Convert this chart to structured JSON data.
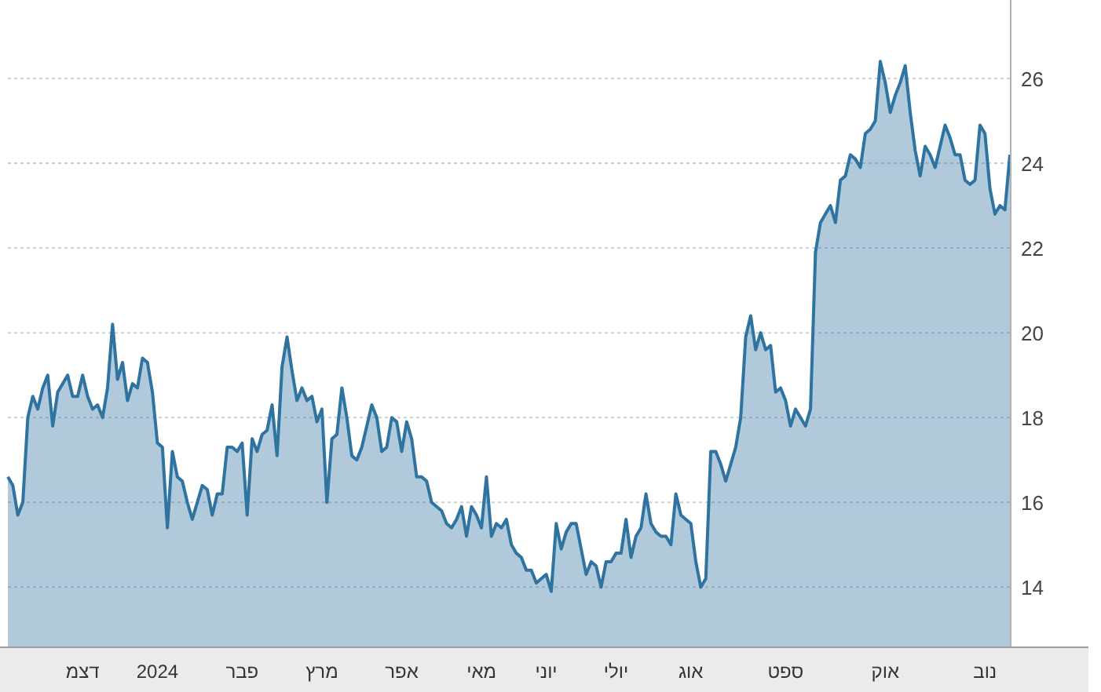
{
  "chart_data": {
    "type": "area",
    "color": "#2f73a0",
    "grid": "y",
    "ylim": [
      12.6,
      27.85
    ],
    "yticks": [
      14,
      16,
      18,
      20,
      22,
      24,
      26
    ],
    "categories": [
      null,
      null,
      null,
      null,
      null,
      null,
      null,
      null,
      null,
      null,
      null,
      null,
      null,
      null,
      null,
      "דצמ",
      null,
      null,
      null,
      null,
      null,
      null,
      null,
      null,
      null,
      null,
      null,
      null,
      null,
      null,
      "2024",
      null,
      null,
      null,
      null,
      null,
      null,
      null,
      null,
      null,
      null,
      null,
      null,
      null,
      null,
      null,
      null,
      "פבר",
      null,
      null,
      null,
      null,
      null,
      null,
      null,
      null,
      null,
      null,
      null,
      null,
      null,
      null,
      null,
      "מרץ",
      null,
      null,
      null,
      null,
      null,
      null,
      null,
      null,
      null,
      null,
      null,
      null,
      null,
      null,
      null,
      "אפר",
      null,
      null,
      null,
      null,
      null,
      null,
      null,
      null,
      null,
      null,
      null,
      null,
      null,
      null,
      null,
      "מאי",
      null,
      null,
      null,
      null,
      null,
      null,
      null,
      null,
      null,
      null,
      null,
      null,
      "יוני",
      null,
      null,
      null,
      null,
      null,
      null,
      null,
      null,
      null,
      null,
      null,
      null,
      null,
      "יולי",
      null,
      null,
      null,
      null,
      null,
      null,
      null,
      null,
      null,
      null,
      null,
      null,
      null,
      null,
      "אוג",
      null,
      null,
      null,
      null,
      null,
      null,
      null,
      null,
      null,
      null,
      null,
      null,
      null,
      null,
      null,
      null,
      null,
      null,
      "ספט",
      null,
      null,
      null,
      null,
      null,
      null,
      null,
      null,
      null,
      null,
      null,
      null,
      null,
      null,
      null,
      null,
      null,
      null,
      null,
      "אוק",
      null,
      null,
      null,
      null,
      null,
      null,
      null,
      null,
      null,
      null,
      null,
      null,
      null,
      null,
      null,
      null,
      null,
      null,
      null,
      "נוב",
      null,
      null,
      null,
      null,
      null
    ],
    "values": [
      16.6,
      16.4,
      15.7,
      16.0,
      18.0,
      18.5,
      18.2,
      18.7,
      19.0,
      17.8,
      18.6,
      18.8,
      19.0,
      18.5,
      18.5,
      19.0,
      18.5,
      18.2,
      18.3,
      18.0,
      18.7,
      20.2,
      18.9,
      19.3,
      18.4,
      18.8,
      18.7,
      19.4,
      19.3,
      18.6,
      17.4,
      17.3,
      15.4,
      17.2,
      16.6,
      16.5,
      16.0,
      15.6,
      16.0,
      16.4,
      16.3,
      15.7,
      16.2,
      16.2,
      17.3,
      17.3,
      17.2,
      17.4,
      15.7,
      17.5,
      17.2,
      17.6,
      17.7,
      18.3,
      17.1,
      19.2,
      19.9,
      19.1,
      18.4,
      18.7,
      18.4,
      18.5,
      17.9,
      18.2,
      16.0,
      17.5,
      17.6,
      18.7,
      18.0,
      17.1,
      17.0,
      17.3,
      17.8,
      18.3,
      18.0,
      17.2,
      17.3,
      18.0,
      17.9,
      17.2,
      17.9,
      17.5,
      16.6,
      16.6,
      16.5,
      16.0,
      15.9,
      15.8,
      15.5,
      15.4,
      15.6,
      15.9,
      15.2,
      15.9,
      15.7,
      15.4,
      16.6,
      15.2,
      15.5,
      15.4,
      15.6,
      15.0,
      14.8,
      14.7,
      14.4,
      14.4,
      14.1,
      14.2,
      14.3,
      13.9,
      15.5,
      14.9,
      15.3,
      15.5,
      15.5,
      14.9,
      14.3,
      14.6,
      14.5,
      14.0,
      14.6,
      14.6,
      14.8,
      14.8,
      15.6,
      14.7,
      15.2,
      15.4,
      16.2,
      15.5,
      15.3,
      15.2,
      15.2,
      15.0,
      16.2,
      15.7,
      15.6,
      15.5,
      14.6,
      14.0,
      14.2,
      17.2,
      17.2,
      16.9,
      16.5,
      16.9,
      17.3,
      18.0,
      19.9,
      20.4,
      19.6,
      20.0,
      19.6,
      19.7,
      18.6,
      18.7,
      18.4,
      17.8,
      18.2,
      18.0,
      17.8,
      18.2,
      21.9,
      22.6,
      22.8,
      23.0,
      22.6,
      23.6,
      23.7,
      24.2,
      24.1,
      23.9,
      24.7,
      24.8,
      25.0,
      26.4,
      25.9,
      25.2,
      25.6,
      25.9,
      26.3,
      25.2,
      24.3,
      23.7,
      24.4,
      24.2,
      23.9,
      24.4,
      24.9,
      24.6,
      24.2,
      24.2,
      23.6,
      23.5,
      23.6,
      24.9,
      24.7,
      23.4,
      22.8,
      23.0,
      22.9,
      24.2
    ]
  }
}
